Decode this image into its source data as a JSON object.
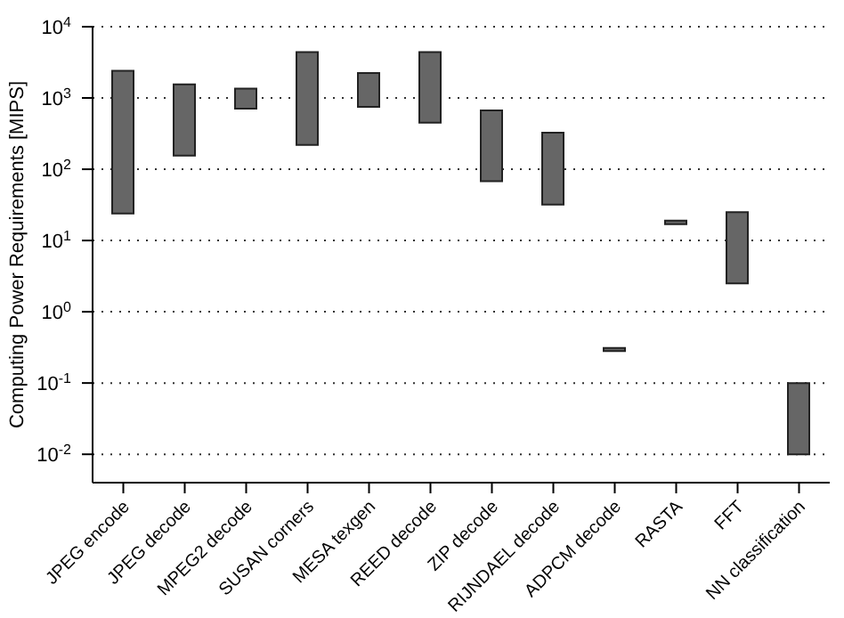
{
  "chart_data": {
    "type": "bar",
    "ylabel": "Computing Power Requirements [MIPS]",
    "categories": [
      "JPEG encode",
      "JPEG decode",
      "MPEG2 decode",
      "SUSAN corners",
      "MESA texgen",
      "REED decode",
      "ZIP decode",
      "RIJNDAEL decode",
      "ADPCM decode",
      "RASTA",
      "FFT",
      "NN classification"
    ],
    "base": [
      24,
      155,
      710,
      220,
      750,
      450,
      68,
      32,
      0.28,
      17,
      2.5,
      0.01
    ],
    "values": [
      2376,
      1395,
      640,
      4180,
      1490,
      3950,
      602,
      293,
      0.03,
      2,
      22.5,
      0.09
    ],
    "color": "#666666",
    "log": true,
    "ylim": [
      0.004,
      10000
    ],
    "yticks": [
      {
        "value": 0.01,
        "label": "10$^{-2}$"
      },
      {
        "value": 0.1,
        "label": "10$^{-1}$"
      },
      {
        "value": 1,
        "label": "10$^{0}$"
      },
      {
        "value": 10,
        "label": "10$^{1}$"
      },
      {
        "value": 100,
        "label": "10$^{2}$"
      },
      {
        "value": 1000,
        "label": "10$^{3}$"
      },
      {
        "value": 10000,
        "label": "10$^{4}$"
      }
    ],
    "grid": "y"
  }
}
